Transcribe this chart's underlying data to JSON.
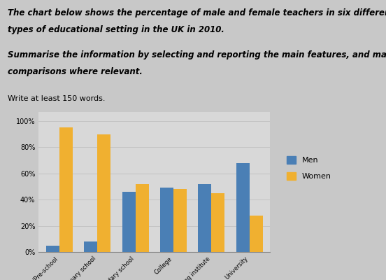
{
  "categories": [
    "Nursery/Pre-school",
    "Primary school",
    "Secondary school",
    "College",
    "Private training institute",
    "University"
  ],
  "men_values": [
    5,
    8,
    46,
    49,
    52,
    68
  ],
  "women_values": [
    95,
    90,
    52,
    48,
    45,
    28
  ],
  "men_color": "#4a7fb5",
  "women_color": "#f0b030",
  "ylabel_ticks": [
    "0%",
    "20%",
    "40%",
    "60%",
    "80%",
    "100%"
  ],
  "ytick_vals": [
    0,
    20,
    40,
    60,
    80,
    100
  ],
  "legend_labels": [
    "Men",
    "Women"
  ],
  "background_color": "#c8c8c8",
  "plot_bg_color": "#d8d8d8",
  "bar_width": 0.35,
  "line1": "The chart below shows the percentage of male and female teachers in six different",
  "line2": "types of educational setting in the UK in 2010.",
  "line3": "Summarise the information by selecting and reporting the main features, and make",
  "line4": "comparisons where relevant.",
  "line5": "Write at least 150 words."
}
